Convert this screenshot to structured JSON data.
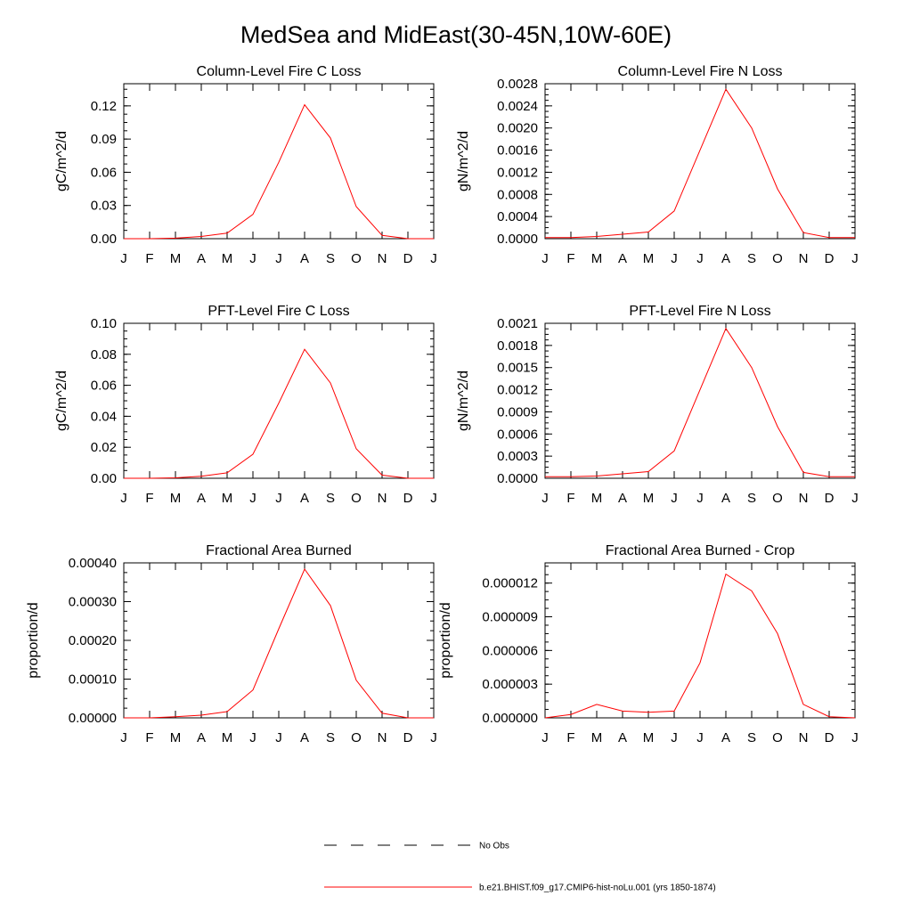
{
  "page": {
    "title": "MedSea and MidEast(30-45N,10W-60E)"
  },
  "chart_data": [
    {
      "type": "line",
      "title": "Column-Level Fire C Loss",
      "ylabel": "gC/m^2/d",
      "xlabel": "",
      "categories": [
        "J",
        "F",
        "M",
        "A",
        "M",
        "J",
        "J",
        "A",
        "S",
        "O",
        "N",
        "D",
        "J"
      ],
      "ylim": [
        0,
        0.14
      ],
      "yticks": [
        "0.00",
        "0.03",
        "0.06",
        "0.09",
        "0.12"
      ],
      "ytick_values": [
        0,
        0.03,
        0.06,
        0.09,
        0.12
      ],
      "series": [
        {
          "values": [
            0.0,
            0.0,
            0.0005,
            0.002,
            0.005,
            0.022,
            0.069,
            0.121,
            0.091,
            0.029,
            0.003,
            0.0,
            0.0
          ]
        }
      ]
    },
    {
      "type": "line",
      "title": "Column-Level Fire N Loss",
      "ylabel": "gN/m^2/d",
      "xlabel": "",
      "categories": [
        "J",
        "F",
        "M",
        "A",
        "M",
        "J",
        "J",
        "A",
        "S",
        "O",
        "N",
        "D",
        "J"
      ],
      "ylim": [
        0,
        0.0028
      ],
      "yticks": [
        "0.0000",
        "0.0004",
        "0.0008",
        "0.0012",
        "0.0016",
        "0.0020",
        "0.0024",
        "0.0028"
      ],
      "ytick_values": [
        0,
        0.0004,
        0.0008,
        0.0012,
        0.0016,
        0.002,
        0.0024,
        0.0028
      ],
      "series": [
        {
          "values": [
            2e-05,
            2e-05,
            4e-05,
            8e-05,
            0.00012,
            0.0005,
            0.0016,
            0.0027,
            0.002,
            0.0009,
            0.00011,
            2e-05,
            2e-05
          ]
        }
      ]
    },
    {
      "type": "line",
      "title": "PFT-Level Fire C Loss",
      "ylabel": "gC/m^2/d",
      "xlabel": "",
      "categories": [
        "J",
        "F",
        "M",
        "A",
        "M",
        "J",
        "J",
        "A",
        "S",
        "O",
        "N",
        "D",
        "J"
      ],
      "ylim": [
        0,
        0.1
      ],
      "yticks": [
        "0.00",
        "0.02",
        "0.04",
        "0.06",
        "0.08",
        "0.10"
      ],
      "ytick_values": [
        0,
        0.02,
        0.04,
        0.06,
        0.08,
        0.1
      ],
      "series": [
        {
          "values": [
            0.0,
            0.0,
            0.0003,
            0.0013,
            0.0035,
            0.0155,
            0.0485,
            0.0832,
            0.0615,
            0.019,
            0.002,
            0.0,
            0.0
          ]
        }
      ]
    },
    {
      "type": "line",
      "title": "PFT-Level Fire N Loss",
      "ylabel": "gN/m^2/d",
      "xlabel": "",
      "categories": [
        "J",
        "F",
        "M",
        "A",
        "M",
        "J",
        "J",
        "A",
        "S",
        "O",
        "N",
        "D",
        "J"
      ],
      "ylim": [
        0,
        0.0021
      ],
      "yticks": [
        "0.0000",
        "0.0003",
        "0.0006",
        "0.0009",
        "0.0012",
        "0.0015",
        "0.0018",
        "0.0021"
      ],
      "ytick_values": [
        0,
        0.0003,
        0.0006,
        0.0009,
        0.0012,
        0.0015,
        0.0018,
        0.0021
      ],
      "series": [
        {
          "values": [
            2e-05,
            2e-05,
            3e-05,
            6e-05,
            9e-05,
            0.00037,
            0.0012,
            0.00203,
            0.0015,
            0.0007,
            8e-05,
            2e-05,
            2e-05
          ]
        }
      ]
    },
    {
      "type": "line",
      "title": "Fractional Area Burned",
      "ylabel": "proportion/d",
      "xlabel": "",
      "categories": [
        "J",
        "F",
        "M",
        "A",
        "M",
        "J",
        "J",
        "A",
        "S",
        "O",
        "N",
        "D",
        "J"
      ],
      "ylim": [
        0,
        0.0004
      ],
      "yticks": [
        "0.00000",
        "0.00010",
        "0.00020",
        "0.00030",
        "0.00040"
      ],
      "ytick_values": [
        0,
        0.0001,
        0.0002,
        0.0003,
        0.0004
      ],
      "series": [
        {
          "values": [
            0.0,
            0.0,
            3e-06,
            7e-06,
            1.6e-05,
            7.2e-05,
            0.00023,
            0.000384,
            0.00029,
            9.7e-05,
            1.2e-05,
            0.0,
            0.0
          ]
        }
      ]
    },
    {
      "type": "line",
      "title": "Fractional Area Burned - Crop",
      "ylabel": "proportion/d",
      "xlabel": "",
      "categories": [
        "J",
        "F",
        "M",
        "A",
        "M",
        "J",
        "J",
        "A",
        "S",
        "O",
        "N",
        "D",
        "J"
      ],
      "ylim": [
        0,
        1.38e-05
      ],
      "yticks": [
        "0.000000",
        "0.000003",
        "0.000006",
        "0.000009",
        "0.000012"
      ],
      "ytick_values": [
        0,
        3e-06,
        6e-06,
        9e-06,
        1.2e-05
      ],
      "series": [
        {
          "values": [
            0.0,
            3e-07,
            1.2e-06,
            6e-07,
            5e-07,
            6e-07,
            4.9e-06,
            1.28e-05,
            1.13e-05,
            7.5e-06,
            1.2e-06,
            1e-07,
            0.0
          ]
        }
      ]
    }
  ],
  "legend": {
    "placement": "bottom-center",
    "items": [
      {
        "label": "No Obs",
        "style": "dashed",
        "color": "#000000"
      },
      {
        "label": "b.e21.BHIST.f09_g17.CMIP6-hist-noLu.001 (yrs 1850-1874)",
        "style": "solid",
        "color": "#ff0000"
      }
    ]
  }
}
